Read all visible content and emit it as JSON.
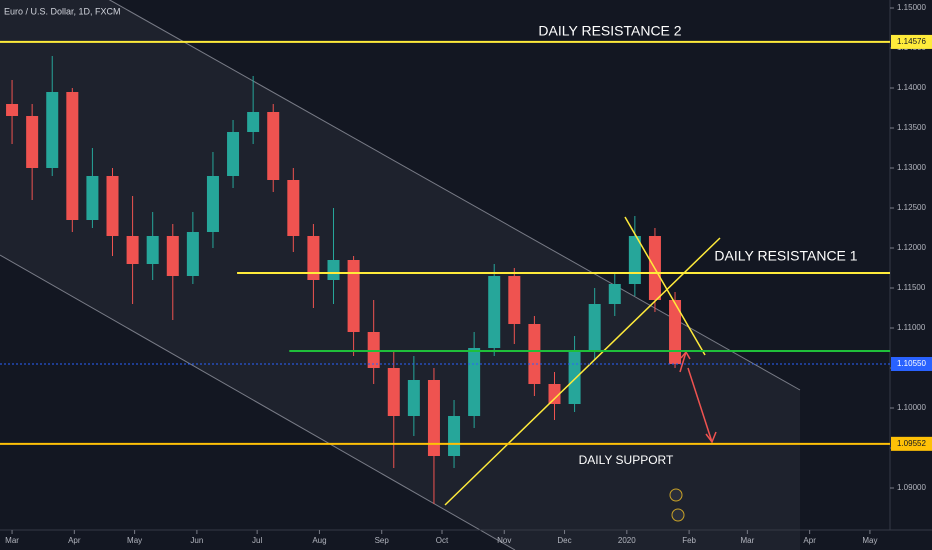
{
  "chart_data": {
    "type": "candlestick",
    "title": "Euro / U.S. Dollar, 1D, FXCM",
    "x": [
      0,
      10,
      20,
      30,
      40,
      50,
      60,
      70,
      80,
      90,
      100,
      110,
      120,
      130,
      140,
      150,
      160,
      170,
      180,
      190,
      200,
      210,
      220,
      230,
      240,
      250,
      260,
      270,
      280,
      290,
      300,
      310,
      320,
      330
    ],
    "open": [
      1.138,
      1.1365,
      1.13,
      1.1395,
      1.1235,
      1.129,
      1.1215,
      1.118,
      1.1215,
      1.1165,
      1.122,
      1.129,
      1.1345,
      1.137,
      1.1285,
      1.1215,
      1.116,
      1.1185,
      1.1095,
      1.105,
      1.099,
      1.1035,
      1.094,
      1.099,
      1.1075,
      1.1165,
      1.1105,
      1.103,
      1.1005,
      1.107,
      1.113,
      1.1155,
      1.1215,
      1.1135
    ],
    "high": [
      1.141,
      1.138,
      1.144,
      1.14,
      1.1325,
      1.13,
      1.1265,
      1.1245,
      1.123,
      1.1245,
      1.132,
      1.136,
      1.1415,
      1.138,
      1.13,
      1.123,
      1.125,
      1.119,
      1.1135,
      1.107,
      1.1065,
      1.105,
      1.101,
      1.1095,
      1.118,
      1.1175,
      1.1115,
      1.1045,
      1.109,
      1.115,
      1.117,
      1.124,
      1.1225,
      1.1145
    ],
    "low": [
      1.133,
      1.126,
      1.129,
      1.122,
      1.1225,
      1.119,
      1.113,
      1.116,
      1.111,
      1.1155,
      1.12,
      1.1275,
      1.133,
      1.127,
      1.1195,
      1.1125,
      1.113,
      1.1065,
      1.103,
      1.0925,
      1.0965,
      1.088,
      1.0925,
      1.0975,
      1.1065,
      1.108,
      1.1015,
      1.0985,
      1.0995,
      1.106,
      1.1115,
      1.114,
      1.112,
      1.105
    ],
    "close": [
      1.1365,
      1.13,
      1.1395,
      1.1235,
      1.129,
      1.1215,
      1.118,
      1.1215,
      1.1165,
      1.122,
      1.129,
      1.1345,
      1.137,
      1.1285,
      1.1215,
      1.116,
      1.1185,
      1.1095,
      1.105,
      1.099,
      1.1035,
      1.094,
      1.099,
      1.1075,
      1.1165,
      1.1105,
      1.103,
      1.1005,
      1.107,
      1.113,
      1.1155,
      1.1215,
      1.1135,
      1.1055
    ],
    "up_color": "#26a69a",
    "down_color": "#ef5350",
    "xlim": [
      -6,
      437
    ],
    "ylim": [
      1.08225,
      1.151
    ],
    "xticks": [
      {
        "value": 0,
        "label": "Mar"
      },
      {
        "value": 31,
        "label": "Apr"
      },
      {
        "value": 61,
        "label": "May"
      },
      {
        "value": 92,
        "label": "Jun"
      },
      {
        "value": 122,
        "label": "Jul"
      },
      {
        "value": 153,
        "label": "Aug"
      },
      {
        "value": 184,
        "label": "Sep"
      },
      {
        "value": 214,
        "label": "Oct"
      },
      {
        "value": 245,
        "label": "Nov"
      },
      {
        "value": 275,
        "label": "Dec"
      },
      {
        "value": 306,
        "label": "2020"
      },
      {
        "value": 337,
        "label": "Feb"
      },
      {
        "value": 366,
        "label": "Mar"
      },
      {
        "value": 397,
        "label": "Apr"
      },
      {
        "value": 427,
        "label": "May"
      }
    ],
    "yticks": [
      {
        "value": 1.15,
        "label": "1.15000"
      },
      {
        "value": 1.145,
        "label": "1.14500"
      },
      {
        "value": 1.14,
        "label": "1.14000"
      },
      {
        "value": 1.135,
        "label": "1.13500"
      },
      {
        "value": 1.13,
        "label": "1.13000"
      },
      {
        "value": 1.125,
        "label": "1.12500"
      },
      {
        "value": 1.12,
        "label": "1.12000"
      },
      {
        "value": 1.115,
        "label": "1.11500"
      },
      {
        "value": 1.11,
        "label": "1.11000"
      },
      {
        "value": 1.105,
        "label": "1.10500"
      },
      {
        "value": 1.1,
        "label": "1.10000"
      },
      {
        "value": 1.095,
        "label": "1.09500"
      },
      {
        "value": 1.09,
        "label": "1.09000"
      }
    ],
    "hlines": [
      {
        "value": 1.14576,
        "label": "1.14576",
        "color": "#ffeb3b"
      },
      {
        "value": 1.09552,
        "label": "1.09552",
        "color": "#ffc107"
      },
      {
        "value": 1.1055,
        "label": "1.10550",
        "color": "#2962ff"
      }
    ],
    "levels": [
      {
        "value": 1.11687,
        "from_x": 112,
        "color": "#ffeb3b"
      },
      {
        "value": 1.10713,
        "from_x": 138,
        "color": "#1fbf3a"
      }
    ],
    "annotations": [
      "DAILY RESISTANCE 2",
      "DAILY RESISTANCE 1",
      "DAILY SUPPORT"
    ]
  }
}
